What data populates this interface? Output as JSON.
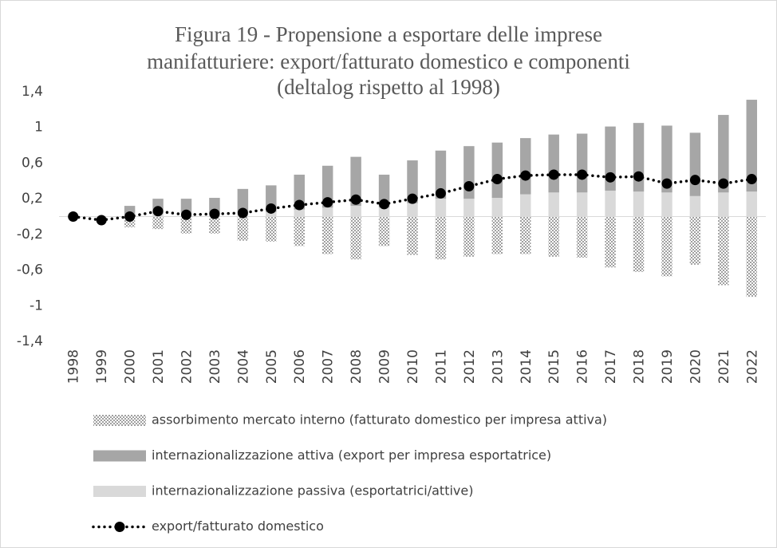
{
  "chart_data": {
    "type": "bar",
    "title": [
      "Figura 19 - Propensione a esportare delle imprese",
      "manifatturiere: export/fatturato domestico e componenti",
      "(deltalog rispetto al 1998)"
    ],
    "categories": [
      "1998",
      "1999",
      "2000",
      "2001",
      "2002",
      "2003",
      "2004",
      "2005",
      "2006",
      "2007",
      "2008",
      "2009",
      "2010",
      "2011",
      "2012",
      "2013",
      "2014",
      "2015",
      "2016",
      "2017",
      "2018",
      "2019",
      "2020",
      "2021",
      "2022"
    ],
    "series": [
      {
        "name": "assorbimento mercato interno (fatturato domestico per impresa attiva)",
        "kind": "bar",
        "color": "pattern",
        "values": [
          0,
          0,
          -0.12,
          -0.14,
          -0.19,
          -0.19,
          -0.27,
          -0.28,
          -0.33,
          -0.42,
          -0.48,
          -0.33,
          -0.43,
          -0.48,
          -0.45,
          -0.42,
          -0.42,
          -0.45,
          -0.46,
          -0.57,
          -0.62,
          -0.67,
          -0.54,
          -0.77,
          -0.9
        ]
      },
      {
        "name": "internazionalizzazione attiva (export per impresa esportatrice)",
        "kind": "bar",
        "color": "#a6a6a6",
        "values": [
          0,
          0,
          0.1,
          0.17,
          0.17,
          0.18,
          0.27,
          0.3,
          0.39,
          0.47,
          0.55,
          0.37,
          0.48,
          0.54,
          0.59,
          0.62,
          0.63,
          0.65,
          0.66,
          0.72,
          0.77,
          0.75,
          0.71,
          0.87,
          1.03
        ]
      },
      {
        "name": "internazionalizzazione passiva (esportatrici/attive)",
        "kind": "bar",
        "color": "#d9d9d9",
        "values": [
          0,
          0,
          0.02,
          0.03,
          0.03,
          0.03,
          0.04,
          0.05,
          0.08,
          0.1,
          0.12,
          0.1,
          0.15,
          0.2,
          0.2,
          0.21,
          0.25,
          0.27,
          0.27,
          0.29,
          0.28,
          0.27,
          0.23,
          0.27,
          0.28
        ]
      },
      {
        "name": "export/fatturato domestico",
        "kind": "line",
        "color": "#000000",
        "values": [
          0,
          -0.04,
          0,
          0.06,
          0.02,
          0.03,
          0.04,
          0.09,
          0.13,
          0.16,
          0.19,
          0.14,
          0.2,
          0.26,
          0.34,
          0.42,
          0.46,
          0.47,
          0.47,
          0.44,
          0.45,
          0.37,
          0.41,
          0.37,
          0.42
        ]
      }
    ],
    "ylim": [
      -1.4,
      1.4
    ],
    "yticks": [
      {
        "value": 1.4,
        "label": "1,4"
      },
      1,
      {
        "value": 0.6,
        "label": "0,6"
      },
      {
        "value": 0.2,
        "label": "0,2"
      },
      {
        "value": -0.2,
        "label": "-0,2"
      },
      {
        "value": -0.6,
        "label": "-0,6"
      },
      -1,
      {
        "value": -1.4,
        "label": "-1,4"
      }
    ],
    "grid": false
  }
}
